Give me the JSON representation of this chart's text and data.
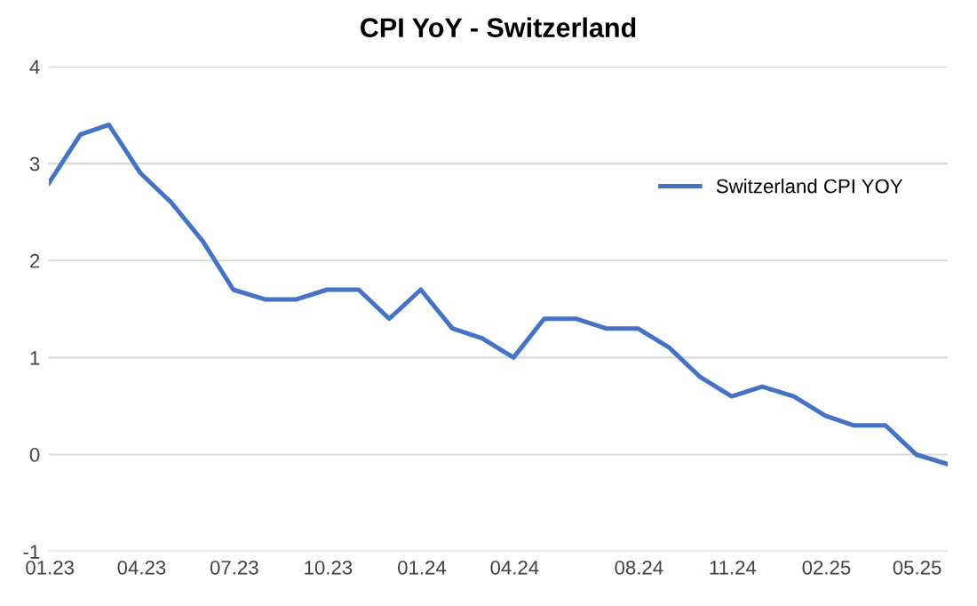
{
  "chart_data": {
    "type": "line",
    "title": "CPI YoY - Switzerland",
    "x": [
      "2022-12-31",
      "2023-01-31",
      "2023-02-28",
      "2023-03-31",
      "2023-04-30",
      "2023-05-31",
      "2023-06-30",
      "2023-07-31",
      "2023-08-31",
      "2023-09-30",
      "2023-10-31",
      "2023-11-30",
      "2023-12-31",
      "2024-01-31",
      "2024-02-29",
      "2024-03-31",
      "2024-04-30",
      "2024-05-31",
      "2024-06-30",
      "2024-07-31",
      "2024-08-31",
      "2024-09-30",
      "2024-10-31",
      "2024-11-30",
      "2024-12-31",
      "2025-01-31",
      "2025-02-28",
      "2025-03-31",
      "2025-04-30",
      "2025-05-31"
    ],
    "series": [
      {
        "name": "Switzerland CPI YOY",
        "color": "#4472c4",
        "values": [
          2.8,
          3.3,
          3.4,
          2.9,
          2.6,
          2.2,
          1.7,
          1.6,
          1.6,
          1.7,
          1.7,
          1.4,
          1.7,
          1.3,
          1.2,
          1.0,
          1.4,
          1.4,
          1.3,
          1.3,
          1.1,
          0.8,
          0.6,
          0.7,
          0.6,
          0.4,
          0.3,
          0.3,
          0.0,
          -0.1
        ]
      }
    ],
    "xlim": [
      "2022-12-31",
      "2025-05-31"
    ],
    "xticks": [
      {
        "value": "2023-01-01",
        "label": "01.23"
      },
      {
        "value": "2023-04-01",
        "label": "04.23"
      },
      {
        "value": "2023-07-01",
        "label": "07.23"
      },
      {
        "value": "2023-10-01",
        "label": "10.23"
      },
      {
        "value": "2024-01-01",
        "label": "01.24"
      },
      {
        "value": "2024-04-01",
        "label": "04.24"
      },
      {
        "value": "2024-08-01",
        "label": "08.24"
      },
      {
        "value": "2024-11-01",
        "label": "11.24"
      },
      {
        "value": "2025-02-01",
        "label": "02.25"
      },
      {
        "value": "2025-05-01",
        "label": "05.25"
      }
    ],
    "ylim": [
      -1,
      4
    ],
    "yticks": [
      -1,
      0,
      1,
      2,
      3,
      4
    ],
    "grid": "y",
    "legend": "right",
    "marker": "none",
    "line_style": "solid"
  }
}
